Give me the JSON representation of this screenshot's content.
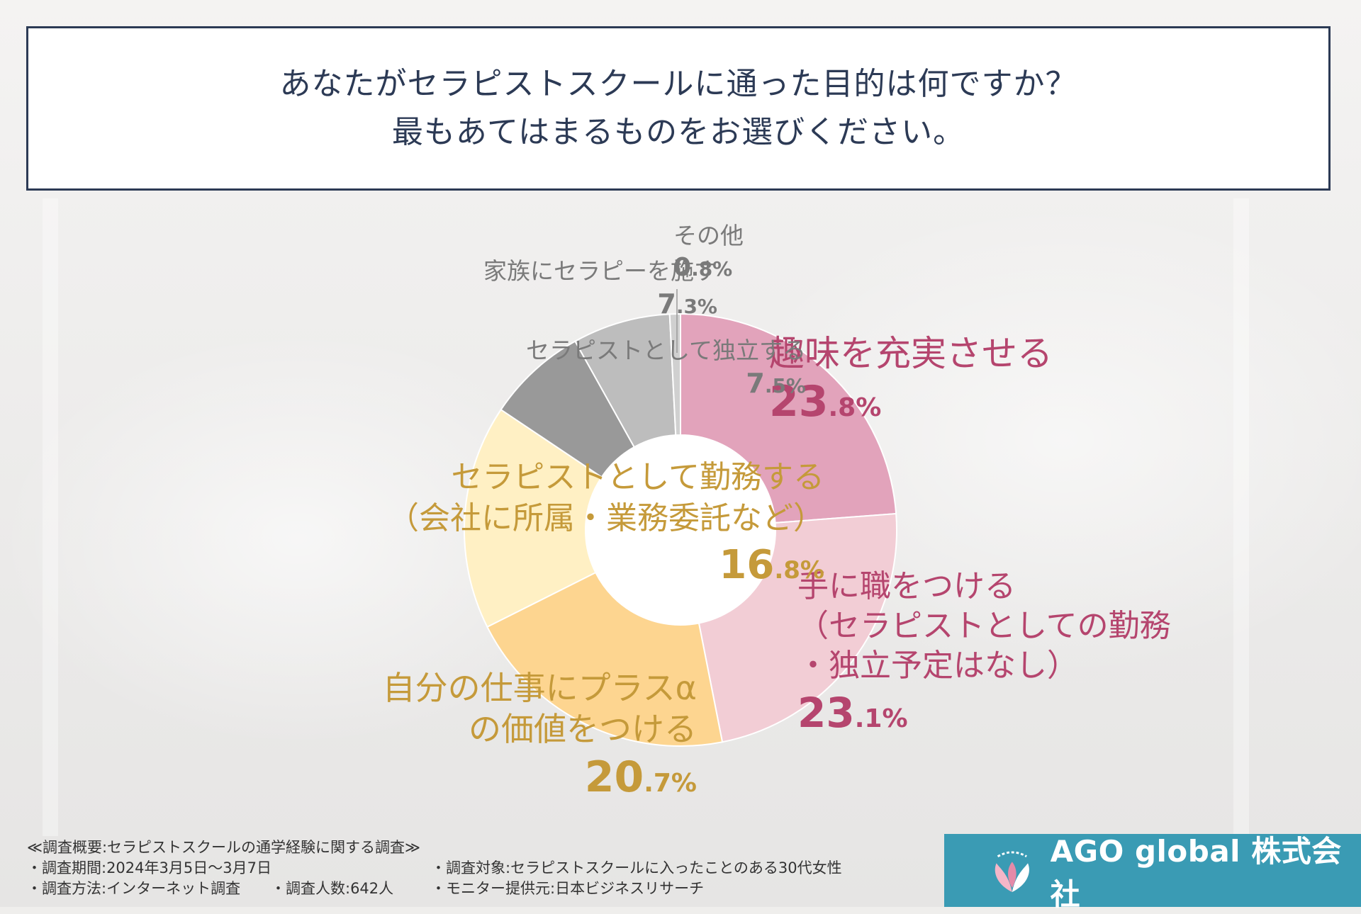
{
  "question": {
    "line1": "あなたがセラピストスクールに通った目的は何ですか？",
    "line2": "最もあてはまるものをお選びください。"
  },
  "chart_data": {
    "type": "pie",
    "categories": [
      "趣味を充実させる",
      "手に職をつける（セラピストとしての勤務・独立予定はなし）",
      "自分の仕事にプラスαの価値をつける",
      "セラピストとして勤務する（会社に所属・業務委託など）",
      "セラピストとして独立する",
      "家族にセラピーを施す",
      "その他"
    ],
    "values": [
      23.8,
      23.1,
      20.7,
      16.8,
      7.5,
      7.3,
      0.8
    ],
    "colors": [
      "#e2a3bb",
      "#f2cdd5",
      "#fdd590",
      "#fff0c4",
      "#999999",
      "#bdbdbd",
      "#d0d0d0"
    ]
  },
  "labels": [
    {
      "lines": [
        "趣味を充実させる"
      ],
      "int": "23",
      "dec": ".8%",
      "color": "#b5456e"
    },
    {
      "lines": [
        "手に職をつける",
        "（セラピストとしての勤務",
        "・独立予定はなし）"
      ],
      "int": "23",
      "dec": ".1%",
      "color": "#b5456e"
    },
    {
      "lines": [
        "自分の仕事にプラスα",
        "の価値をつける"
      ],
      "int": "20",
      "dec": ".7%",
      "color": "#c59a3a"
    },
    {
      "lines": [
        "セラピストとして勤務する",
        "（会社に所属・業務委託など）"
      ],
      "int": "16",
      "dec": ".8%",
      "color": "#c59a3a"
    },
    {
      "lines": [
        "セラピストとして独立する"
      ],
      "int": "7",
      "dec": ".5%",
      "color": "#7a7a7a"
    },
    {
      "lines": [
        "家族にセラピーを施す"
      ],
      "int": "7",
      "dec": ".3%",
      "color": "#7a7a7a"
    },
    {
      "lines": [
        "その他"
      ],
      "int": "0",
      "dec": ".8%",
      "color": "#7a7a7a"
    }
  ],
  "notes": {
    "title": "≪調査概要:セラピストスクールの通学経験に関する調査≫",
    "period": "・調査期間:2024年3月5日〜3月7日",
    "target": "・調査対象:セラピストスクールに入ったことのある30代女性",
    "method": "・調査方法:インターネット調査",
    "count": "・調査人数:642人",
    "provider": "・モニター提供元:日本ビジネスリサーチ"
  },
  "company": {
    "name": "AGO global 株式会社"
  }
}
